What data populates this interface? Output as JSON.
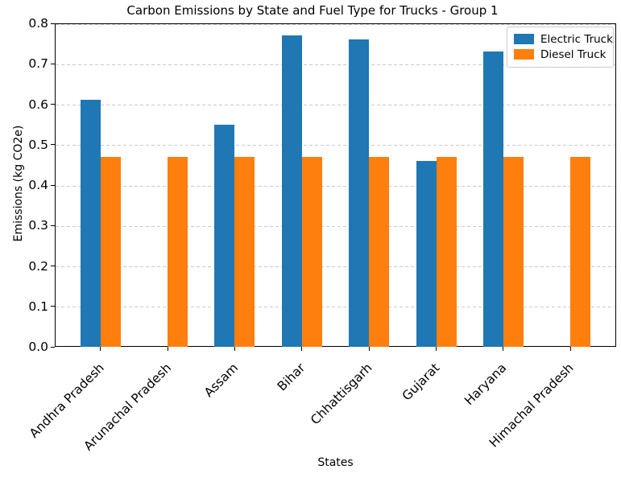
{
  "chart_data": {
    "type": "bar",
    "title": "Carbon Emissions by State and Fuel Type for Trucks - Group 1",
    "xlabel": "States",
    "ylabel": "Emissions (kg CO2e)",
    "categories": [
      "Andhra Pradesh",
      "Arunachal Pradesh",
      "Assam",
      "Bihar",
      "Chhattisgarh",
      "Gujarat",
      "Haryana",
      "Himachal Pradesh"
    ],
    "series": [
      {
        "name": "Electric Truck",
        "color": "#1f77b4",
        "values": [
          0.61,
          0,
          0.55,
          0.77,
          0.76,
          0.46,
          0.73,
          0
        ]
      },
      {
        "name": "Diesel Truck",
        "color": "#ff7f0e",
        "values": [
          0.47,
          0.47,
          0.47,
          0.47,
          0.47,
          0.47,
          0.47,
          0.47
        ]
      }
    ],
    "ylim": [
      0.0,
      0.8
    ],
    "yticks": [
      "0.0",
      "0.1",
      "0.2",
      "0.3",
      "0.4",
      "0.5",
      "0.6",
      "0.7",
      "0.8"
    ],
    "grid": "horizontal-dashed",
    "legend_position": "upper-right",
    "bar_width_units": 0.3
  },
  "colors": {
    "grid": "#c9c9c9",
    "spine": "#000000",
    "background": "#ffffff",
    "electric": "#1f77b4",
    "diesel": "#ff7f0e"
  }
}
